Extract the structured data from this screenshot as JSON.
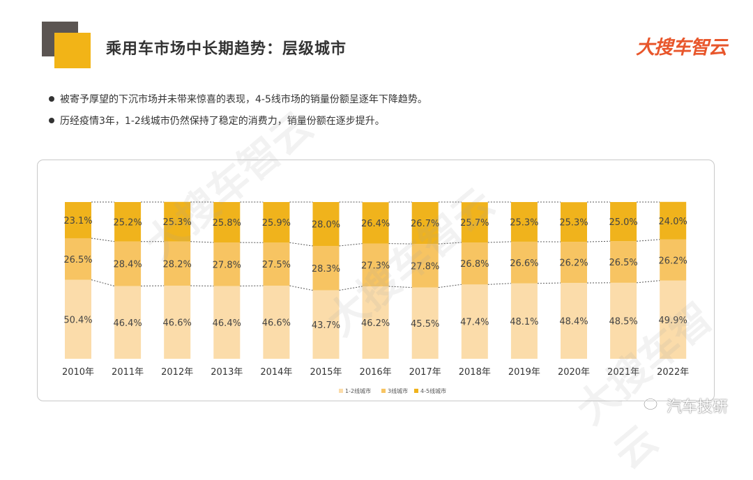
{
  "header": {
    "title": "乘用车市场中长期趋势：层级城市",
    "logo_text": "大搜车智云"
  },
  "bullets": [
    "被寄予厚望的下沉市场并未带来惊喜的表现，4-5线市场的销量份额呈逐年下降趋势。",
    "历经疫情3年，1-2线城市仍然保持了稳定的消费力，销量份额在逐步提升。"
  ],
  "watermark": "大搜车智云",
  "footer": {
    "account_name": "汽车技研",
    "icon": "wechat-icon"
  },
  "chart_data": {
    "type": "bar",
    "stacked": true,
    "normalized_percent": true,
    "categories": [
      "2010年",
      "2011年",
      "2012年",
      "2013年",
      "2014年",
      "2015年",
      "2016年",
      "2017年",
      "2018年",
      "2019年",
      "2020年",
      "2021年",
      "2022年"
    ],
    "series": [
      {
        "name": "1-2线城市",
        "color": "#fbdcaa",
        "values": [
          50.4,
          46.4,
          46.6,
          46.4,
          46.6,
          43.7,
          46.2,
          45.5,
          47.4,
          48.1,
          48.4,
          48.5,
          49.9
        ]
      },
      {
        "name": "3线城市",
        "color": "#f7c462",
        "values": [
          26.5,
          28.4,
          28.2,
          27.8,
          27.5,
          28.3,
          27.3,
          27.8,
          26.8,
          26.6,
          26.2,
          26.5,
          26.2
        ]
      },
      {
        "name": "4-5线城市",
        "color": "#f0b31c",
        "values": [
          23.1,
          25.2,
          25.3,
          25.8,
          25.9,
          28.0,
          26.4,
          26.7,
          25.7,
          25.3,
          25.3,
          25.0,
          24.0
        ]
      }
    ],
    "value_suffix": "%",
    "ylim": [
      0,
      100
    ],
    "legend_position": "bottom-center",
    "dashed_connectors": true
  }
}
